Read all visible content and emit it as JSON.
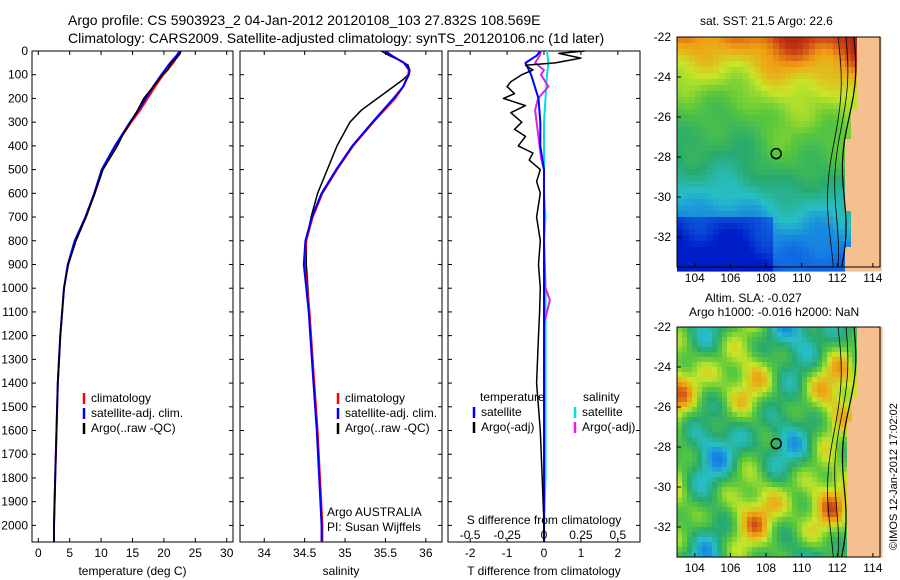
{
  "header": {
    "title_line1": "Argo profile: CS 5903923_2 04-Jan-2012 20120108_103 27.832S 108.569E",
    "title_line2": "Climatology: CARS2009. Satellite-adjusted climatology: synTS_20120106.nc (1d later)"
  },
  "colors": {
    "climatology": "#ff0000",
    "satellite": "#0000ff",
    "argo": "#000000",
    "sal_satellite": "#00e0e0",
    "sal_argo": "#e020e0"
  },
  "chart_data": [
    {
      "type": "line",
      "panel": "temperature",
      "xlabel": "temperature (deg C)",
      "ylabel": "",
      "xlim": [
        -1,
        31
      ],
      "ylim": [
        2070,
        0
      ],
      "xticks": [
        0,
        5,
        10,
        15,
        20,
        25,
        30
      ],
      "yticks": [
        0,
        100,
        200,
        300,
        400,
        500,
        600,
        700,
        800,
        900,
        1000,
        1100,
        1200,
        1300,
        1400,
        1500,
        1600,
        1700,
        1800,
        1900,
        2000
      ],
      "legend": [
        "climatology",
        "satellite-adj. clim.",
        "Argo(..raw -QC)"
      ],
      "legend_position": "lower-right",
      "series": [
        {
          "name": "climatology",
          "y": [
            0,
            20,
            50,
            100,
            150,
            200,
            250,
            300,
            400,
            500,
            600,
            700,
            800,
            900,
            1000,
            1200,
            1400,
            1600,
            1800,
            2000,
            2070
          ],
          "x": [
            22.4,
            22.2,
            21.5,
            19.9,
            18.6,
            17.4,
            16.2,
            14.8,
            12.3,
            10.2,
            9.0,
            7.6,
            5.9,
            4.7,
            4.1,
            3.5,
            3.1,
            2.9,
            2.7,
            2.5,
            2.5
          ]
        },
        {
          "name": "satellite-adj. clim.",
          "y": [
            0,
            20,
            50,
            100,
            150,
            200,
            250,
            300,
            400,
            500,
            600,
            700,
            800,
            900,
            1000,
            1200,
            1400,
            1600,
            1800,
            2000,
            2070
          ],
          "x": [
            22.5,
            22.0,
            21.0,
            19.6,
            18.3,
            17.1,
            15.9,
            14.6,
            12.2,
            10.1,
            8.9,
            7.5,
            5.8,
            4.7,
            4.1,
            3.5,
            3.1,
            2.9,
            2.7,
            2.5,
            2.5
          ]
        },
        {
          "name": "Argo(..raw -QC)",
          "y": [
            0,
            10,
            30,
            50,
            80,
            100,
            150,
            200,
            250,
            300,
            350,
            400,
            500,
            600,
            700,
            800,
            900,
            1000,
            1200,
            1400,
            1600,
            1800,
            2000,
            2070
          ],
          "x": [
            22.7,
            22.6,
            22.0,
            21.2,
            20.6,
            19.8,
            18.3,
            16.8,
            15.8,
            14.7,
            13.5,
            12.6,
            10.3,
            9.0,
            7.6,
            6.0,
            4.8,
            4.1,
            3.5,
            3.1,
            2.9,
            2.7,
            2.5,
            2.5
          ]
        }
      ]
    },
    {
      "type": "line",
      "panel": "salinity",
      "xlabel": "salinity",
      "xlim": [
        33.7,
        36.2
      ],
      "ylim": [
        2070,
        0
      ],
      "xticks": [
        34,
        34.5,
        35,
        35.5,
        36
      ],
      "legend": [
        "climatology",
        "satellite-adj. clim.",
        "Argo(..raw -QC)"
      ],
      "legend_position": "lower-right",
      "annotation": [
        "Argo AUSTRALIA",
        "PI: Susan Wijffels"
      ],
      "series": [
        {
          "name": "climatology",
          "y": [
            0,
            20,
            50,
            80,
            100,
            150,
            200,
            300,
            400,
            500,
            600,
            700,
            800,
            900,
            1000,
            1100,
            1200,
            1400,
            1600,
            1800,
            2000,
            2070
          ],
          "x": [
            35.5,
            35.58,
            35.73,
            35.79,
            35.78,
            35.72,
            35.62,
            35.35,
            35.1,
            34.9,
            34.72,
            34.6,
            34.52,
            34.5,
            34.53,
            34.56,
            34.58,
            34.62,
            34.66,
            34.69,
            34.72,
            34.72
          ]
        },
        {
          "name": "satellite-adj. clim.",
          "y": [
            0,
            20,
            50,
            80,
            100,
            150,
            200,
            300,
            400,
            500,
            600,
            700,
            800,
            900,
            1000,
            1100,
            1200,
            1400,
            1600,
            1800,
            2000,
            2070
          ],
          "x": [
            35.5,
            35.58,
            35.73,
            35.8,
            35.79,
            35.72,
            35.6,
            35.34,
            35.09,
            34.89,
            34.71,
            34.59,
            34.51,
            34.49,
            34.52,
            34.55,
            34.57,
            34.61,
            34.65,
            34.68,
            34.71,
            34.71
          ]
        },
        {
          "name": "Argo(..raw -QC)",
          "y": [
            0,
            20,
            40,
            60,
            80,
            100,
            120,
            150,
            200,
            250,
            300,
            400,
            500,
            600,
            700,
            800,
            900,
            1000,
            1100,
            1200,
            1400,
            1600,
            1800,
            2000,
            2070
          ],
          "x": [
            35.45,
            35.55,
            35.68,
            35.78,
            35.8,
            35.78,
            35.72,
            35.6,
            35.4,
            35.2,
            35.06,
            34.9,
            34.78,
            34.66,
            34.58,
            34.52,
            34.52,
            34.54,
            34.56,
            34.57,
            34.61,
            34.65,
            34.68,
            34.71,
            34.71
          ]
        }
      ]
    },
    {
      "type": "line",
      "panel": "differences",
      "xlabel": "T difference from climatology",
      "top_axis_label": "S difference from climatology",
      "xlim": [
        -2.6,
        2.6
      ],
      "ylim": [
        2070,
        0
      ],
      "xticks": [
        -2,
        -1,
        0,
        1,
        2
      ],
      "s_xticks": [
        -0.5,
        -0.25,
        0,
        0.25,
        0.5
      ],
      "legend_temperature": [
        "temperature",
        "satellite",
        "Argo(-adj)"
      ],
      "legend_salinity": [
        "salinity",
        "satellite",
        "Argo(-adj)"
      ],
      "series": [
        {
          "name": "satellite",
          "y": [
            0,
            20,
            50,
            100,
            150,
            200,
            300,
            400,
            500,
            600,
            700,
            800,
            900,
            1000,
            1200,
            1400,
            1600,
            1800,
            2000,
            2070
          ],
          "x": [
            -0.1,
            -0.2,
            -0.5,
            -0.35,
            -0.25,
            -0.15,
            -0.1,
            -0.1,
            0.0,
            0.0,
            0.0,
            0.0,
            0.0,
            0.0,
            0.0,
            0.0,
            0.0,
            0.0,
            0.0,
            0.0
          ]
        },
        {
          "name": "Argo(-adj)",
          "y": [
            0,
            10,
            30,
            50,
            60,
            80,
            100,
            130,
            150,
            180,
            200,
            230,
            260,
            300,
            330,
            360,
            400,
            430,
            460,
            500,
            550,
            600,
            700,
            800,
            900,
            1000,
            1100,
            1200,
            1400,
            1600,
            1800,
            2000,
            2070
          ],
          "x": [
            1.1,
            0.4,
            1.0,
            0.3,
            -0.5,
            -0.3,
            -0.6,
            -0.9,
            -1.0,
            -0.8,
            -1.1,
            -0.5,
            -0.9,
            -0.6,
            -0.8,
            -0.5,
            -0.7,
            -0.3,
            -0.4,
            -0.1,
            -0.2,
            -0.1,
            -0.2,
            -0.1,
            -0.15,
            -0.1,
            -0.12,
            -0.15,
            -0.2,
            -0.1,
            -0.05,
            0.0,
            0.0
          ]
        }
      ],
      "salinity_series": [
        {
          "name": "satellite",
          "y": [
            0,
            50,
            100,
            200,
            300,
            400,
            500,
            600,
            700,
            800,
            1000,
            1200,
            1400,
            1600,
            1800,
            2000,
            2070
          ],
          "x": [
            0.02,
            0.03,
            0.02,
            0.01,
            0.0,
            0.0,
            0.0,
            0.0,
            0.01,
            0.0,
            0.01,
            0.01,
            0.01,
            0.01,
            0.01,
            0.0,
            0.0
          ]
        },
        {
          "name": "Argo(-adj)",
          "y": [
            0,
            20,
            50,
            80,
            100,
            150,
            200,
            250,
            300,
            350,
            400,
            450,
            500,
            600,
            800,
            1000,
            1050,
            1100,
            1150,
            1200,
            1400,
            1600,
            1800,
            2000,
            2070
          ],
          "x": [
            -0.02,
            -0.03,
            -0.06,
            0.0,
            -0.02,
            0.03,
            -0.04,
            -0.06,
            -0.05,
            -0.04,
            -0.03,
            -0.02,
            0.0,
            0.0,
            0.0,
            0.01,
            0.04,
            0.02,
            0.0,
            0.0,
            0.0,
            0.0,
            0.0,
            0.0,
            0.0
          ]
        }
      ]
    },
    {
      "type": "heatmap",
      "panel": "sst_map",
      "title": "sat. SST: 21.5  Argo: 22.6",
      "xlim": [
        103,
        114.4
      ],
      "ylim": [
        -33.5,
        -22
      ],
      "xticks": [
        104,
        106,
        108,
        110,
        112,
        114
      ],
      "yticks": [
        -22,
        -24,
        -26,
        -28,
        -30,
        -32
      ],
      "marker": {
        "lon": 108.569,
        "lat": -27.832
      }
    },
    {
      "type": "heatmap",
      "panel": "sla_map",
      "title": [
        "Altim. SLA: -0.027",
        "Argo h1000: -0.016 h2000: NaN"
      ],
      "xlim": [
        103,
        114.4
      ],
      "ylim": [
        -33.5,
        -22
      ],
      "xticks": [
        104,
        106,
        108,
        110,
        112,
        114
      ],
      "yticks": [
        -22,
        -24,
        -26,
        -28,
        -30,
        -32
      ],
      "marker": {
        "lon": 108.569,
        "lat": -27.832
      }
    }
  ],
  "footer": {
    "stamp": "©IMOS 12-Jan-2012 17:02:02"
  }
}
